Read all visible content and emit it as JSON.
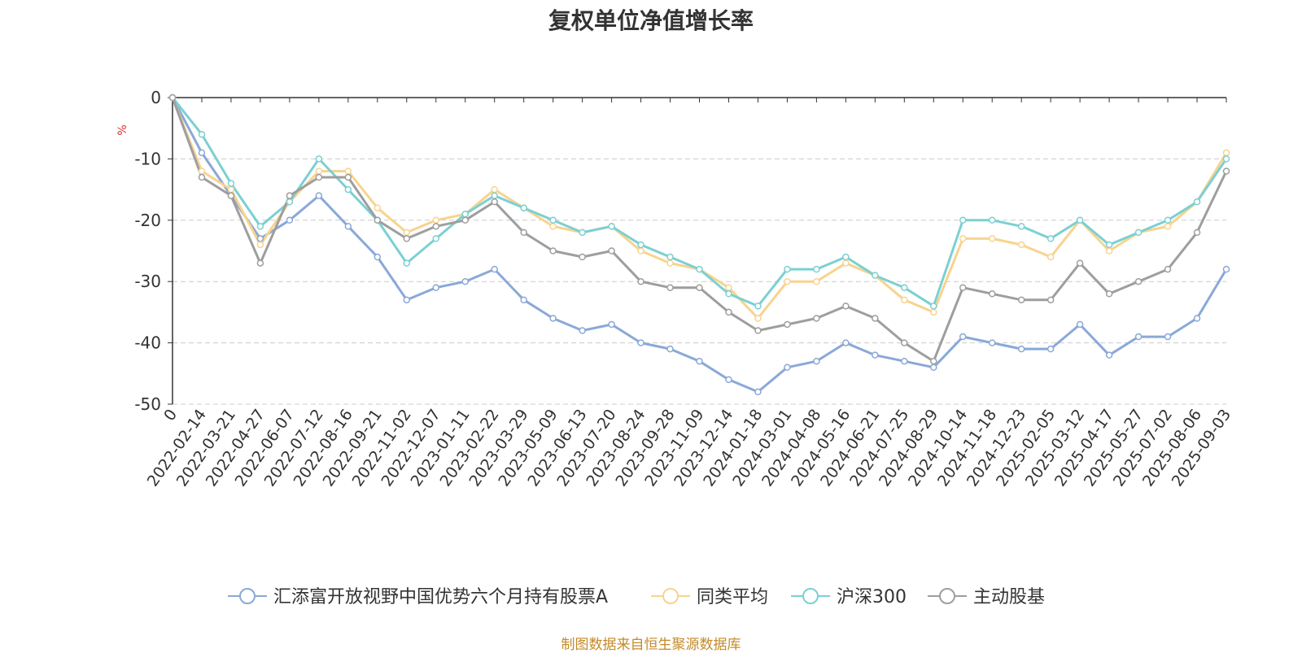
{
  "chart_data": {
    "type": "line",
    "title": "复权单位净值增长率",
    "ylabel": "%",
    "ylim": [
      -50,
      0
    ],
    "yticks": [
      0,
      -10,
      -20,
      -30,
      -40,
      -50
    ],
    "grid": true,
    "legend_position": "bottom",
    "source_note": "制图数据来自恒生聚源数据库",
    "x": [
      "0",
      "2022-02-14",
      "2022-03-21",
      "2022-04-27",
      "2022-06-07",
      "2022-07-12",
      "2022-08-16",
      "2022-09-21",
      "2022-11-02",
      "2022-12-07",
      "2023-01-11",
      "2023-02-22",
      "2023-03-29",
      "2023-05-09",
      "2023-06-13",
      "2023-07-20",
      "2023-08-24",
      "2023-09-28",
      "2023-11-09",
      "2023-12-14",
      "2024-01-18",
      "2024-03-01",
      "2024-04-08",
      "2024-05-16",
      "2024-06-21",
      "2024-07-25",
      "2024-08-29",
      "2024-10-14",
      "2024-11-18",
      "2024-12-23",
      "2025-02-05",
      "2025-03-12",
      "2025-04-17",
      "2025-05-27",
      "2025-07-02",
      "2025-08-06",
      "2025-09-03"
    ],
    "series": [
      {
        "name": "汇添富开放视野中国优势六个月持有股票A",
        "color": "#8aa8d8",
        "values": [
          0,
          -9,
          -16,
          -23,
          -20,
          -16,
          -21,
          -26,
          -33,
          -31,
          -30,
          -28,
          -33,
          -36,
          -38,
          -37,
          -40,
          -41,
          -43,
          -46,
          -48,
          -44,
          -43,
          -40,
          -42,
          -43,
          -44,
          -39,
          -40,
          -41,
          -41,
          -37,
          -42,
          -39,
          -39,
          -36,
          -28
        ]
      },
      {
        "name": "同类平均",
        "color": "#f8d38e",
        "values": [
          0,
          -12,
          -15,
          -24,
          -17,
          -12,
          -12,
          -18,
          -22,
          -20,
          -19,
          -15,
          -18,
          -21,
          -22,
          -21,
          -25,
          -27,
          -28,
          -31,
          -36,
          -30,
          -30,
          -27,
          -29,
          -33,
          -35,
          -23,
          -23,
          -24,
          -26,
          -20,
          -25,
          -22,
          -21,
          -17,
          -9
        ]
      },
      {
        "name": "沪深300",
        "color": "#7bd0d2",
        "values": [
          0,
          -6,
          -14,
          -21,
          -17,
          -10,
          -15,
          -20,
          -27,
          -23,
          -19,
          -16,
          -18,
          -20,
          -22,
          -21,
          -24,
          -26,
          -28,
          -32,
          -34,
          -28,
          -28,
          -26,
          -29,
          -31,
          -34,
          -20,
          -20,
          -21,
          -23,
          -20,
          -24,
          -22,
          -20,
          -17,
          -10
        ]
      },
      {
        "name": "主动股基",
        "color": "#9e9e9e",
        "values": [
          0,
          -13,
          -16,
          -27,
          -16,
          -13,
          -13,
          -20,
          -23,
          -21,
          -20,
          -17,
          -22,
          -25,
          -26,
          -25,
          -30,
          -31,
          -31,
          -35,
          -38,
          -37,
          -36,
          -34,
          -36,
          -40,
          -43,
          -31,
          -32,
          -33,
          -33,
          -27,
          -32,
          -30,
          -28,
          -22,
          -12
        ]
      }
    ]
  }
}
